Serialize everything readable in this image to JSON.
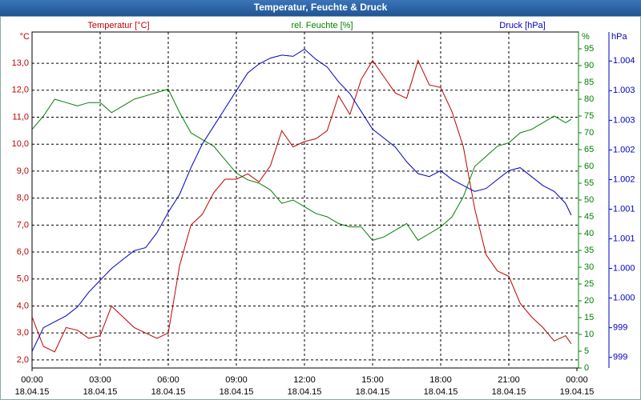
{
  "chart_data": {
    "type": "line",
    "title": "Temperatur, Feuchte & Druck",
    "ylabel": "Temperatur [°C]",
    "yunit": "°C",
    "y2label": "rel. Feuchte [%]",
    "y2unit": "%",
    "y3label": "Druck [hPa]",
    "y3unit": "hPa",
    "grid": true,
    "x": [
      0,
      0.5,
      1,
      1.5,
      2,
      2.5,
      3,
      3.5,
      4,
      4.5,
      5,
      5.5,
      6,
      6.5,
      7,
      7.5,
      8,
      8.5,
      9,
      9.5,
      10,
      10.5,
      11,
      11.5,
      12,
      12.5,
      13,
      13.5,
      14,
      14.5,
      15,
      15.5,
      16,
      16.5,
      17,
      17.5,
      18,
      18.5,
      19,
      19.5,
      20,
      20.5,
      21,
      21.5,
      22,
      22.5,
      23,
      23.5,
      23.75
    ],
    "xlim": [
      0,
      24
    ],
    "xticks": [
      {
        "value": 0,
        "label": "00:00"
      },
      {
        "value": 3,
        "label": "03:00"
      },
      {
        "value": 6,
        "label": "06:00"
      },
      {
        "value": 9,
        "label": "09:00"
      },
      {
        "value": 12,
        "label": "12:00"
      },
      {
        "value": 15,
        "label": "15:00"
      },
      {
        "value": 18,
        "label": "18:00"
      },
      {
        "value": 21,
        "label": "21:00"
      },
      {
        "value": 24,
        "label": "00:00"
      }
    ],
    "xtick_dates": [
      "18.04.15",
      "18.04.15",
      "18.04.15",
      "18.04.15",
      "18.04.15",
      "18.04.15",
      "18.04.15",
      "18.04.15",
      "19.04.15"
    ],
    "ylim": [
      1.7,
      14.16
    ],
    "yticks": [
      {
        "value": 2,
        "label": "2,0"
      },
      {
        "value": 3,
        "label": "3,0"
      },
      {
        "value": 4,
        "label": "4,0"
      },
      {
        "value": 5,
        "label": "5,0"
      },
      {
        "value": 6,
        "label": "6,0"
      },
      {
        "value": 7,
        "label": "7,0"
      },
      {
        "value": 8,
        "label": "8,0"
      },
      {
        "value": 9,
        "label": "9,0"
      },
      {
        "value": 10,
        "label": "10,0"
      },
      {
        "value": 11,
        "label": "11,0"
      },
      {
        "value": 12,
        "label": "12,0"
      },
      {
        "value": 13,
        "label": "13,0"
      }
    ],
    "y2lim": [
      0,
      100
    ],
    "y2ticks": [
      0,
      5,
      10,
      15,
      20,
      25,
      30,
      35,
      40,
      45,
      50,
      55,
      60,
      65,
      70,
      75,
      80,
      85,
      90,
      95
    ],
    "y3lim": [
      998.82,
      1004.49
    ],
    "y3ticks": [
      999,
      {
        "value": 999.5,
        "label": "999"
      },
      {
        "value": 1000,
        "label": "1.000"
      },
      {
        "value": 1000.5,
        "label": "1.000"
      },
      {
        "value": 1001,
        "label": "1.001"
      },
      {
        "value": 1001.5,
        "label": "1.001"
      },
      {
        "value": 1002,
        "label": "1.002"
      },
      {
        "value": 1002.5,
        "label": "1.002"
      },
      {
        "value": 1003,
        "label": "1.003"
      },
      {
        "value": 1003.5,
        "label": "1.003"
      },
      {
        "value": 1004,
        "label": "1.004"
      }
    ],
    "series": [
      {
        "name": "Temperatur [°C]",
        "color": "#c00000",
        "axis": "y",
        "values": [
          3.6,
          2.5,
          2.3,
          3.2,
          3.1,
          2.8,
          2.9,
          4.0,
          3.6,
          3.2,
          3.0,
          2.8,
          3.0,
          5.5,
          7.0,
          7.4,
          8.2,
          8.7,
          8.7,
          8.9,
          8.6,
          9.2,
          10.5,
          9.9,
          10.1,
          10.2,
          10.5,
          11.8,
          11.1,
          12.4,
          13.1,
          12.5,
          11.9,
          11.7,
          13.1,
          12.2,
          12.1,
          11.2,
          9.9,
          7.6,
          5.9,
          5.3,
          5.1,
          4.1,
          3.6,
          3.2,
          2.7,
          2.9,
          2.6
        ]
      },
      {
        "name": "rel. Feuchte [%]",
        "color": "#008000",
        "axis": "y2",
        "values": [
          71,
          75,
          80,
          79,
          78,
          79,
          79,
          76,
          78,
          80,
          81,
          82,
          83,
          76,
          70,
          68,
          66,
          62,
          58,
          56,
          55,
          53,
          49,
          50,
          48,
          46,
          45,
          43,
          42,
          42,
          38,
          39,
          41,
          43,
          38,
          40,
          42,
          45,
          51,
          60,
          63,
          66,
          67,
          70,
          71,
          73,
          75,
          73,
          74
        ]
      },
      {
        "name": "Druck [hPa]",
        "color": "#0000c0",
        "axis": "y3",
        "values": [
          999.1,
          999.5,
          999.6,
          999.7,
          999.85,
          1000.1,
          1000.3,
          1000.5,
          1000.65,
          1000.8,
          1000.85,
          1001.1,
          1001.45,
          1001.75,
          1002.2,
          1002.6,
          1002.9,
          1003.2,
          1003.5,
          1003.8,
          1003.95,
          1004.05,
          1004.1,
          1004.08,
          1004.2,
          1004.03,
          1003.9,
          1003.65,
          1003.45,
          1003.15,
          1002.85,
          1002.7,
          1002.55,
          1002.3,
          1002.1,
          1002.05,
          1002.15,
          1002.0,
          1001.9,
          1001.8,
          1001.85,
          1002.0,
          1002.15,
          1002.2,
          1002.05,
          1001.9,
          1001.8,
          1001.6,
          1001.4
        ]
      }
    ]
  }
}
